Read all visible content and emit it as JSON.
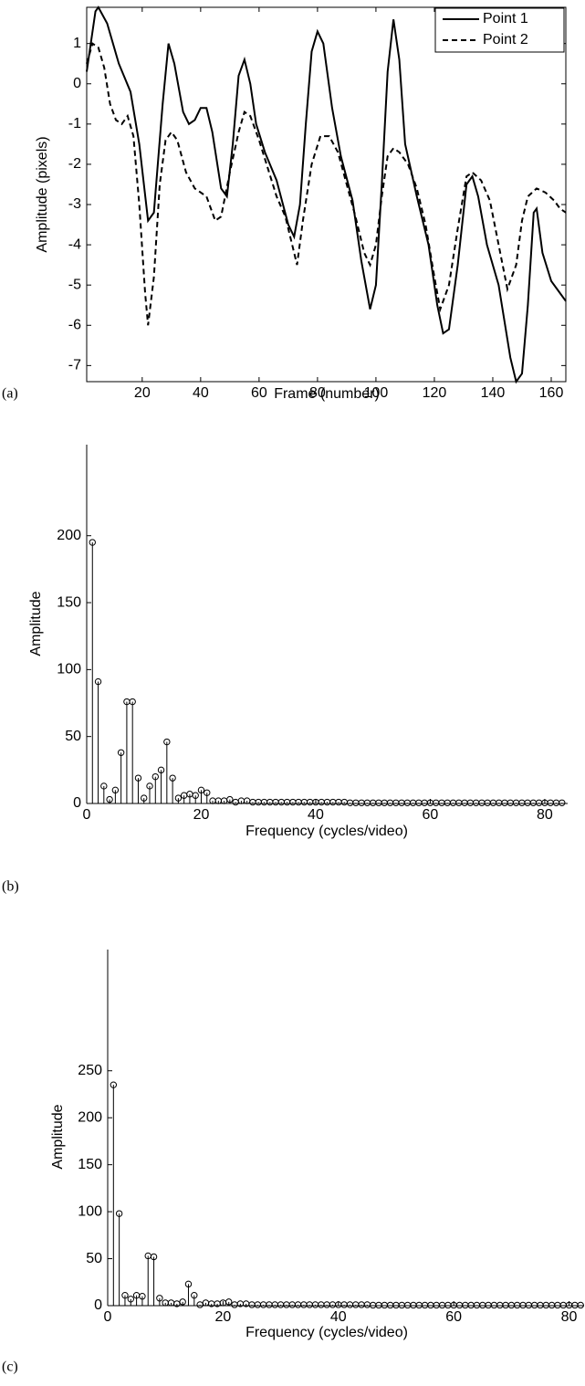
{
  "chart_data": [
    {
      "type": "line",
      "panel_label": "(a)",
      "x_label": "Frame (number)",
      "y_label": "Amplitude (pixels)",
      "xlim": [
        1,
        165
      ],
      "ylim": [
        -7.4,
        1.9
      ],
      "xticks": [
        20,
        40,
        60,
        80,
        100,
        120,
        140,
        160
      ],
      "yticks": [
        -7,
        -6,
        -5,
        -4,
        -3,
        -2,
        -1,
        0,
        1
      ],
      "box": true,
      "legend": "top-right",
      "series": [
        {
          "name": "Point 1",
          "color": "#000000",
          "line_style": "solid",
          "x": [
            1,
            4,
            5,
            8,
            12,
            16,
            19,
            22,
            24,
            27,
            29,
            31,
            34,
            36,
            38,
            40,
            42,
            44,
            47,
            49,
            51,
            53,
            55,
            57,
            59,
            62,
            66,
            70,
            72,
            74,
            76,
            78,
            80,
            82,
            85,
            88,
            92,
            95,
            98,
            100,
            102,
            104,
            106,
            108,
            110,
            114,
            118,
            121,
            123,
            125,
            128,
            131,
            133,
            135,
            138,
            142,
            146,
            148,
            150,
            152,
            154,
            155,
            157,
            160,
            163,
            165
          ],
          "values": [
            0.3,
            1.8,
            1.9,
            1.5,
            0.5,
            -0.2,
            -1.5,
            -3.4,
            -3.2,
            -0.5,
            1.0,
            0.5,
            -0.7,
            -1.0,
            -0.9,
            -0.6,
            -0.6,
            -1.2,
            -2.6,
            -2.8,
            -1.5,
            0.2,
            0.6,
            0,
            -1.0,
            -1.7,
            -2.4,
            -3.5,
            -3.8,
            -3.0,
            -1.0,
            0.8,
            1.3,
            1.0,
            -0.6,
            -1.8,
            -2.9,
            -4.4,
            -5.6,
            -5.0,
            -2.5,
            0.3,
            1.6,
            0.6,
            -1.5,
            -2.8,
            -4.0,
            -5.5,
            -6.2,
            -6.1,
            -4.5,
            -2.5,
            -2.3,
            -2.8,
            -4.0,
            -5.0,
            -6.8,
            -7.4,
            -7.2,
            -5.5,
            -3.2,
            -3.1,
            -4.2,
            -4.9,
            -5.2,
            -5.4
          ]
        },
        {
          "name": "Point 2",
          "color": "#000000",
          "line_style": "dashed",
          "x": [
            1,
            3,
            5,
            7,
            9,
            11,
            13,
            15,
            17,
            19,
            21,
            22,
            24,
            26,
            28,
            30,
            32,
            35,
            38,
            42,
            45,
            47,
            50,
            53,
            55,
            57,
            60,
            63,
            66,
            69,
            71,
            73,
            75,
            78,
            81,
            84,
            87,
            90,
            93,
            96,
            98,
            100,
            102,
            104,
            106,
            108,
            111,
            114,
            117,
            120,
            122,
            125,
            128,
            131,
            133,
            136,
            139,
            142,
            145,
            148,
            150,
            152,
            155,
            158,
            161,
            163,
            165
          ],
          "values": [
            0.5,
            1.0,
            0.9,
            0.4,
            -0.5,
            -0.9,
            -1.0,
            -0.8,
            -1.3,
            -3.0,
            -5.2,
            -6.0,
            -4.8,
            -2.5,
            -1.4,
            -1.2,
            -1.4,
            -2.2,
            -2.6,
            -2.8,
            -3.4,
            -3.3,
            -2.2,
            -1.2,
            -0.7,
            -0.8,
            -1.4,
            -2.1,
            -2.8,
            -3.3,
            -3.9,
            -4.5,
            -3.4,
            -2.0,
            -1.3,
            -1.3,
            -1.7,
            -2.5,
            -3.3,
            -4.2,
            -4.5,
            -4.0,
            -2.8,
            -1.8,
            -1.6,
            -1.7,
            -2.0,
            -2.6,
            -3.5,
            -4.8,
            -5.6,
            -5.0,
            -3.6,
            -2.3,
            -2.2,
            -2.4,
            -2.9,
            -4.0,
            -5.1,
            -4.5,
            -3.4,
            -2.8,
            -2.6,
            -2.7,
            -2.9,
            -3.1,
            -3.2
          ]
        }
      ]
    },
    {
      "type": "stem",
      "panel_label": "(b)",
      "x_label": "Frequency (cycles/video)",
      "y_label": "Amplitude",
      "xlim": [
        0,
        84
      ],
      "ylim": [
        0,
        268
      ],
      "xticks": [
        0,
        20,
        40,
        60,
        80
      ],
      "yticks": [
        0,
        50,
        100,
        150,
        200
      ],
      "box": false,
      "color": "#000000",
      "x": [
        1,
        2,
        3,
        4,
        5,
        6,
        7,
        8,
        9,
        10,
        11,
        12,
        13,
        14,
        15,
        16,
        17,
        18,
        19,
        20,
        21,
        22,
        23,
        24,
        25,
        26,
        27,
        28,
        29,
        30,
        31,
        32,
        33,
        34,
        35,
        36,
        37,
        38,
        39,
        40,
        41,
        42,
        43,
        44,
        45,
        46,
        47,
        48,
        49,
        50,
        51,
        52,
        53,
        54,
        55,
        56,
        57,
        58,
        59,
        60,
        61,
        62,
        63,
        64,
        65,
        66,
        67,
        68,
        69,
        70,
        71,
        72,
        73,
        74,
        75,
        76,
        77,
        78,
        79,
        80,
        81,
        82,
        83
      ],
      "values": [
        195,
        91,
        13,
        3,
        10,
        38,
        76,
        76,
        19,
        4,
        13,
        20,
        25,
        46,
        19,
        4,
        6,
        7,
        6,
        10,
        8,
        2,
        2,
        2,
        3,
        1,
        2,
        2,
        1,
        1,
        1,
        1,
        1,
        1,
        1,
        1,
        1,
        1,
        1,
        1,
        1,
        1,
        1,
        1,
        1,
        0.5,
        0.5,
        0.5,
        0.5,
        0.5,
        0.5,
        0.5,
        0.5,
        0.5,
        0.5,
        0.5,
        0.5,
        0.5,
        0.5,
        0.5,
        0.5,
        0.5,
        0.5,
        0.5,
        0.5,
        0.5,
        0.5,
        0.5,
        0.5,
        0.5,
        0.5,
        0.5,
        0.5,
        0.5,
        0.5,
        0.5,
        0.5,
        0.5,
        0.5,
        0.5,
        0.5,
        0.5,
        0.5
      ]
    },
    {
      "type": "stem",
      "panel_label": "(c)",
      "x_label": "Frequency (cycles/video)",
      "y_label": "Amplitude",
      "xlim": [
        0,
        82.6
      ],
      "ylim": [
        0,
        379
      ],
      "xticks": [
        0,
        20,
        40,
        60,
        80
      ],
      "yticks": [
        0,
        50,
        100,
        150,
        200,
        250
      ],
      "box": false,
      "color": "#000000",
      "x": [
        1,
        2,
        3,
        4,
        5,
        6,
        7,
        8,
        9,
        10,
        11,
        12,
        13,
        14,
        15,
        16,
        17,
        18,
        19,
        20,
        21,
        22,
        23,
        24,
        25,
        26,
        27,
        28,
        29,
        30,
        31,
        32,
        33,
        34,
        35,
        36,
        37,
        38,
        39,
        40,
        41,
        42,
        43,
        44,
        45,
        46,
        47,
        48,
        49,
        50,
        51,
        52,
        53,
        54,
        55,
        56,
        57,
        58,
        59,
        60,
        61,
        62,
        63,
        64,
        65,
        66,
        67,
        68,
        69,
        70,
        71,
        72,
        73,
        74,
        75,
        76,
        77,
        78,
        79,
        80,
        81,
        82
      ],
      "values": [
        235,
        98,
        11,
        7,
        11,
        10,
        53,
        52,
        8,
        3,
        3,
        2,
        4,
        23,
        11,
        1,
        3,
        2,
        2,
        3,
        4,
        1,
        2,
        2,
        1,
        1,
        1,
        1,
        1,
        1,
        1,
        1,
        1,
        1,
        1,
        1,
        1,
        1,
        1,
        1,
        1,
        1,
        1,
        1,
        1,
        0.5,
        0.5,
        0.5,
        0.5,
        0.5,
        0.5,
        0.5,
        0.5,
        0.5,
        0.5,
        0.5,
        0.5,
        0.5,
        0.5,
        0.5,
        0.5,
        0.5,
        0.5,
        0.5,
        0.5,
        0.5,
        0.5,
        0.5,
        0.5,
        0.5,
        0.5,
        0.5,
        0.5,
        0.5,
        0.5,
        0.5,
        0.5,
        0.5,
        0.5,
        0.5,
        0.5,
        0.5
      ]
    }
  ]
}
